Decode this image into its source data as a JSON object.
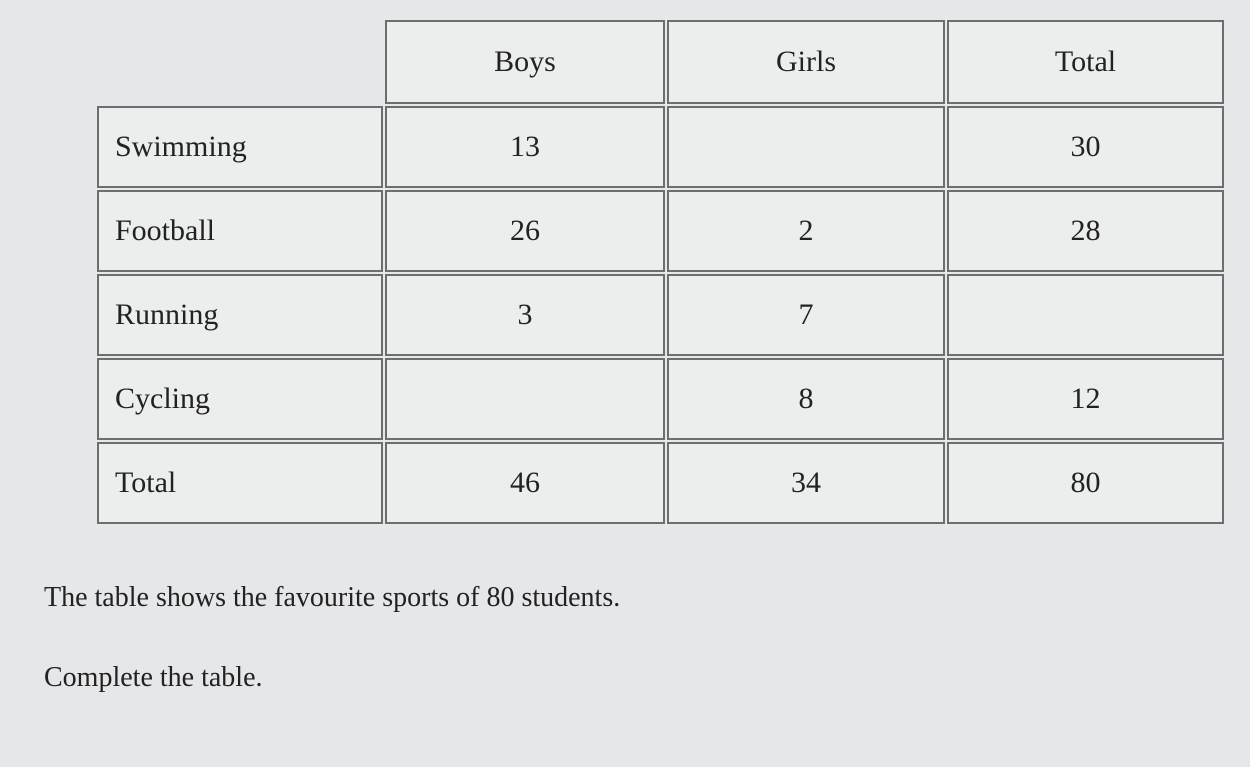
{
  "table": {
    "header": [
      "Boys",
      "Girls",
      "Total"
    ],
    "rows": [
      [
        "Swimming",
        "13",
        null,
        "30"
      ],
      [
        "Football",
        "26",
        "2",
        "28"
      ],
      [
        "Running",
        "3",
        "7",
        null
      ],
      [
        "Cycling",
        null,
        "8",
        "12"
      ],
      [
        "Total",
        "46",
        "34",
        "80"
      ]
    ]
  },
  "text": [
    "The table shows the favourite sports of 80 students.",
    "Complete the table."
  ]
}
